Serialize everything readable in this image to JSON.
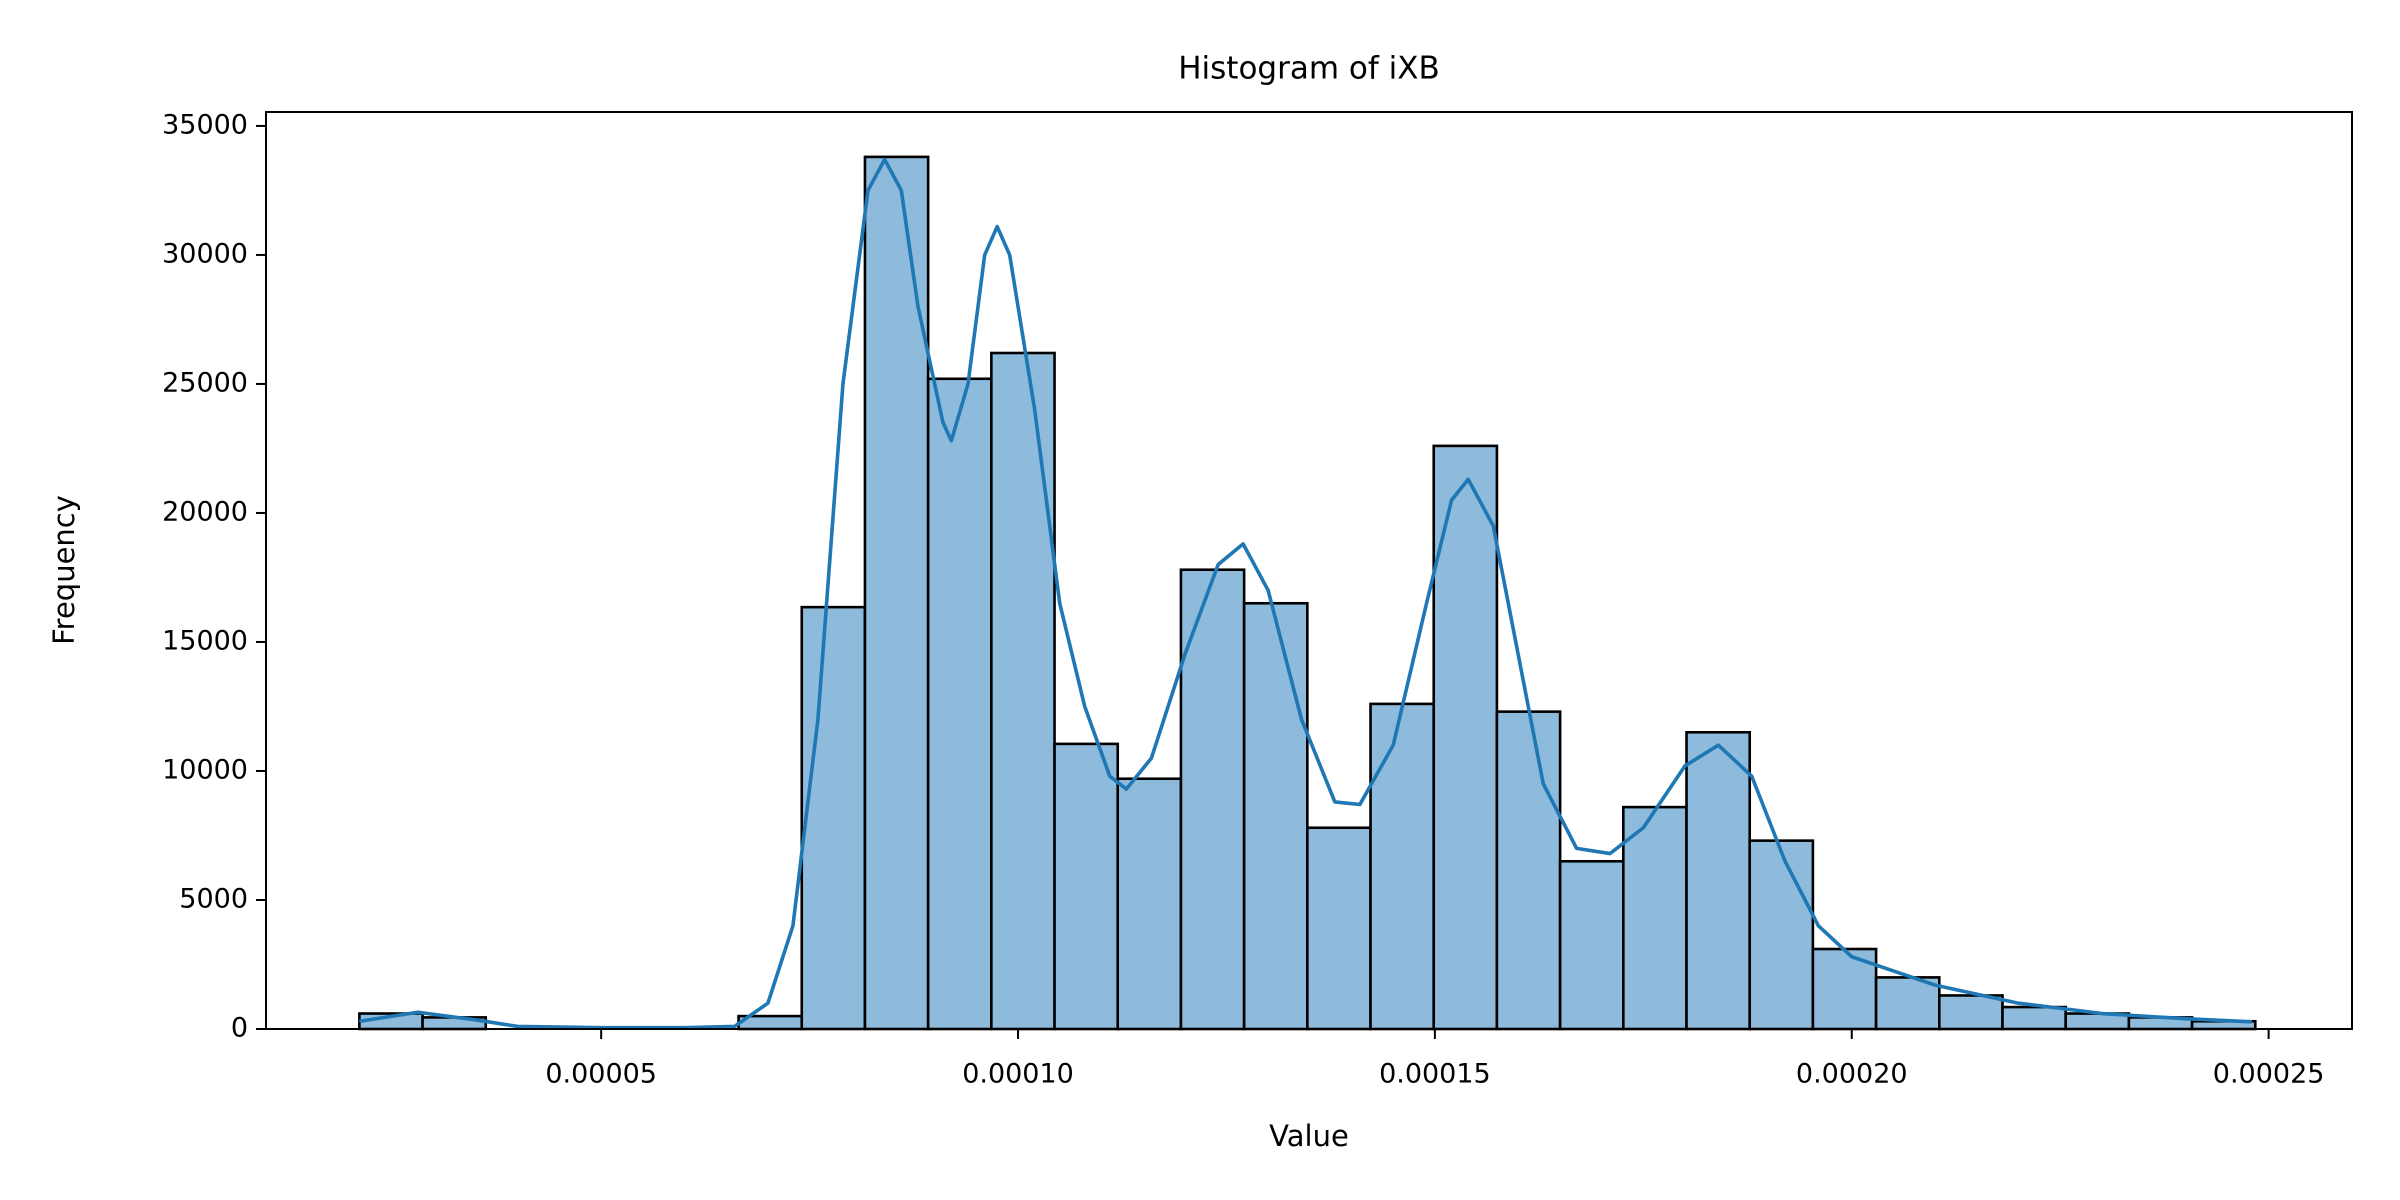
{
  "chart_data": {
    "type": "histogram",
    "title": "Histogram of iXB",
    "x_label": "Value",
    "y_label": "Frequency",
    "bins": [
      2.1e-05,
      2.858e-05,
      3.616e-05,
      4.374e-05,
      5.132e-05,
      5.89e-05,
      6.648e-05,
      7.406e-05,
      8.164e-05,
      8.922e-05,
      9.68e-05,
      0.00010438,
      0.00011196,
      0.00011954,
      0.00012712,
      0.0001347,
      0.00014228,
      0.00014986,
      0.00015744,
      0.00016502,
      0.0001726,
      0.00018018,
      0.00018776,
      0.00019534,
      0.00020292,
      0.0002105,
      0.00021808,
      0.00022566,
      0.00023324,
      0.00024082,
      0.0002484
    ],
    "values": [
      600,
      450,
      0,
      0,
      0,
      0,
      500,
      16350,
      33800,
      25200,
      26200,
      11050,
      9700,
      17800,
      16500,
      7800,
      12600,
      22600,
      12300,
      6500,
      8600,
      11500,
      7300,
      3100,
      2000,
      1300,
      850,
      600,
      450,
      300
    ],
    "color": "#8ebadb",
    "edge_color": "#000000",
    "kde": {
      "color": "#1f77b4",
      "x": [
        2.1e-05,
        2.8e-05,
        3.5e-05,
        4e-05,
        5e-05,
        6e-05,
        6.6e-05,
        7e-05,
        7.3e-05,
        7.6e-05,
        7.9e-05,
        8.2e-05,
        8.4e-05,
        8.6e-05,
        8.8e-05,
        9.1e-05,
        9.2e-05,
        9.4e-05,
        9.6e-05,
        9.75e-05,
        9.9e-05,
        0.000102,
        0.000105,
        0.000108,
        0.000111,
        0.000113,
        0.000116,
        0.00012,
        0.000124,
        0.000127,
        0.00013,
        0.000134,
        0.000138,
        0.000141,
        0.000145,
        0.000149,
        0.000152,
        0.000154,
        0.000157,
        0.00016,
        0.000163,
        0.000167,
        0.000171,
        0.000175,
        0.00018,
        0.000184,
        0.000188,
        0.000192,
        0.000196,
        0.0002,
        0.00021,
        0.00022,
        0.00023,
        0.00024,
        0.000248
      ],
      "values": [
        300,
        650,
        350,
        100,
        50,
        50,
        100,
        1000,
        4000,
        12000,
        25000,
        32500,
        33700,
        32500,
        28000,
        23500,
        22800,
        25000,
        30000,
        31100,
        30000,
        24000,
        16500,
        12500,
        9800,
        9300,
        10500,
        14500,
        18000,
        18800,
        17000,
        12000,
        8800,
        8700,
        11000,
        16500,
        20500,
        21300,
        19500,
        14500,
        9500,
        7000,
        6800,
        7800,
        10200,
        11000,
        9800,
        6500,
        4000,
        2800,
        1700,
        1000,
        600,
        400,
        280
      ]
    },
    "xlim": [
      9.8e-06,
      0.00026
    ],
    "ylim": [
      0,
      35540
    ],
    "xticks": [
      {
        "value": 5e-05,
        "label": "0.00005"
      },
      {
        "value": 0.0001,
        "label": "0.00010"
      },
      {
        "value": 0.00015,
        "label": "0.00015"
      },
      {
        "value": 0.0002,
        "label": "0.00020"
      },
      {
        "value": 0.00025,
        "label": "0.00025"
      }
    ],
    "yticks": [
      0,
      5000,
      10000,
      15000,
      20000,
      25000,
      30000,
      35000
    ],
    "grid": false
  }
}
